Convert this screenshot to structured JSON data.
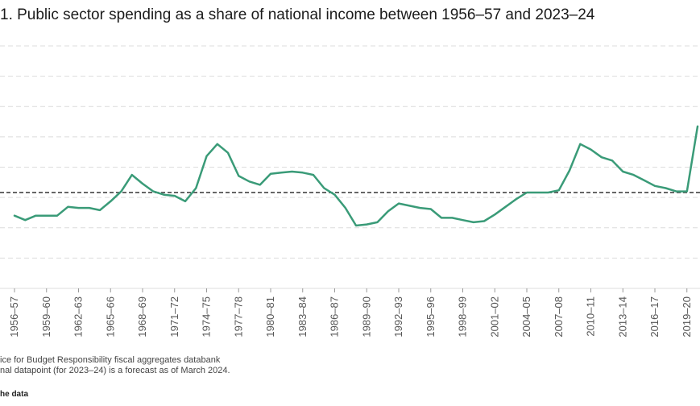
{
  "title": "1. Public sector spending as a share of national income between 1956–57 and 2023–24",
  "notes": [
    "ice for Budget Responsibility fiscal aggregates databank",
    "nal datapoint (for 2023–24) is a forecast as of March 2024."
  ],
  "data_link": "he data",
  "colors": {
    "line": "#3a9b78",
    "reference": "#666666",
    "grid": "#dcdcdc"
  },
  "chart_data": {
    "type": "line",
    "title": "1. Public sector spending as a share of national income between 1956–57 and 2023–24",
    "xlabel": "",
    "ylabel": "",
    "ylim": [
      30,
      52
    ],
    "grid": true,
    "x_tick_labels": [
      "1956–57",
      "1959–60",
      "1962–63",
      "1965–66",
      "1968–69",
      "1971–72",
      "1974–75",
      "1977–78",
      "1980–81",
      "1983–84",
      "1986–87",
      "1989–90",
      "1992–93",
      "1995–96",
      "1998–99",
      "2001–02",
      "2004–05",
      "2007–08",
      "2010–11",
      "2013–14",
      "2016–17",
      "2019–20"
    ],
    "x": [
      "1956–57",
      "1957–58",
      "1958–59",
      "1959–60",
      "1960–61",
      "1961–62",
      "1962–63",
      "1963–64",
      "1964–65",
      "1965–66",
      "1966–67",
      "1967–68",
      "1968–69",
      "1969–70",
      "1970–71",
      "1971–72",
      "1972–73",
      "1973–74",
      "1974–75",
      "1975–76",
      "1976–77",
      "1977–78",
      "1978–79",
      "1979–80",
      "1980–81",
      "1981–82",
      "1982–83",
      "1983–84",
      "1984–85",
      "1985–86",
      "1986–87",
      "1987–88",
      "1988–89",
      "1989–90",
      "1990–91",
      "1991–92",
      "1992–93",
      "1993–94",
      "1994–95",
      "1995–96",
      "1996–97",
      "1997–98",
      "1998–99",
      "1999–00",
      "2000–01",
      "2001–02",
      "2002–03",
      "2003–04",
      "2004–05",
      "2005–06",
      "2006–07",
      "2007–08",
      "2008–09",
      "2009–10",
      "2010–11",
      "2011–12",
      "2012–13",
      "2013–14",
      "2014–15",
      "2015–16",
      "2016–17",
      "2017–18",
      "2018–19",
      "2019–20",
      "2020–21"
    ],
    "series": [
      {
        "values": [
          36.6,
          36.2,
          36.6,
          36.6,
          36.6,
          37.4,
          37.3,
          37.3,
          37.1,
          37.9,
          38.8,
          40.3,
          39.5,
          38.8,
          38.5,
          38.4,
          37.9,
          39.1,
          42.0,
          43.1,
          42.3,
          40.2,
          39.7,
          39.4,
          40.4,
          40.5,
          40.6,
          40.5,
          40.3,
          39.1,
          38.5,
          37.3,
          35.7,
          35.8,
          36.0,
          37.0,
          37.7,
          37.5,
          37.3,
          37.2,
          36.4,
          36.4,
          36.2,
          36.0,
          36.1,
          36.7,
          37.4,
          38.1,
          38.7,
          38.7,
          38.7,
          38.9,
          40.7,
          43.1,
          42.6,
          41.9,
          41.6,
          40.6,
          40.3,
          39.8,
          39.3,
          39.1,
          38.8,
          38.8,
          44.7
        ]
      }
    ],
    "reference_line": {
      "value": 38.7,
      "style": "dashed"
    }
  }
}
